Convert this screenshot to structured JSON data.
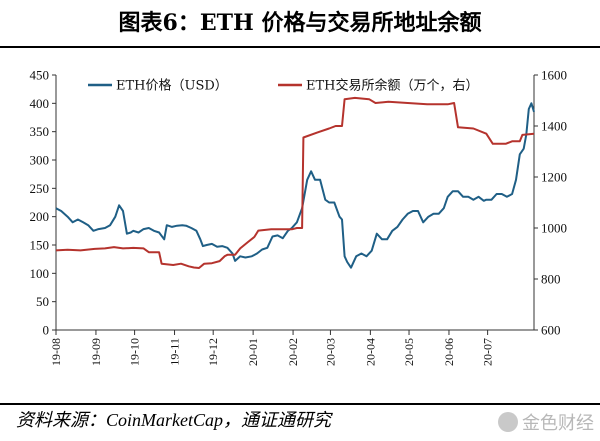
{
  "title": "图表6：ETH 价格与交易所地址余额",
  "source": "资料来源：CoinMarketCap，通证通研究",
  "watermark": "金色财经",
  "chart_data": {
    "type": "line",
    "legend": [
      "ETH价格（USD）",
      "ETH交易所余额（万个，右）"
    ],
    "legend_placement": "top",
    "grid": false,
    "x": {
      "start": "2019-08-01",
      "end": "2020-08-06",
      "tick_labels": [
        "19-08",
        "19-09",
        "19-10",
        "19-11",
        "19-12",
        "20-01",
        "20-02",
        "20-03",
        "20-04",
        "20-05",
        "20-06",
        "20-07"
      ]
    },
    "y_left": {
      "min": 0,
      "max": 450,
      "ticks": [
        0,
        50,
        100,
        150,
        200,
        250,
        300,
        350,
        400,
        450
      ]
    },
    "y_right": {
      "min": 600,
      "max": 1600,
      "ticks": [
        600,
        800,
        1000,
        1200,
        1400,
        1600
      ]
    },
    "series": [
      {
        "name": "ETH价格（USD）",
        "axis": "left",
        "color": "#1f5f86",
        "points": [
          [
            "2019-08-01",
            215
          ],
          [
            "2019-08-05",
            210
          ],
          [
            "2019-08-10",
            200
          ],
          [
            "2019-08-14",
            190
          ],
          [
            "2019-08-18",
            195
          ],
          [
            "2019-08-22",
            190
          ],
          [
            "2019-08-26",
            185
          ],
          [
            "2019-08-30",
            175
          ],
          [
            "2019-09-03",
            178
          ],
          [
            "2019-09-08",
            180
          ],
          [
            "2019-09-12",
            185
          ],
          [
            "2019-09-16",
            200
          ],
          [
            "2019-09-19",
            220
          ],
          [
            "2019-09-22",
            210
          ],
          [
            "2019-09-25",
            170
          ],
          [
            "2019-09-28",
            172
          ],
          [
            "2019-09-30",
            175
          ],
          [
            "2019-10-04",
            172
          ],
          [
            "2019-10-08",
            178
          ],
          [
            "2019-10-12",
            180
          ],
          [
            "2019-10-16",
            175
          ],
          [
            "2019-10-20",
            172
          ],
          [
            "2019-10-24",
            160
          ],
          [
            "2019-10-26",
            185
          ],
          [
            "2019-10-30",
            182
          ],
          [
            "2019-11-03",
            184
          ],
          [
            "2019-11-07",
            185
          ],
          [
            "2019-11-10",
            184
          ],
          [
            "2019-11-14",
            180
          ],
          [
            "2019-11-18",
            175
          ],
          [
            "2019-11-21",
            160
          ],
          [
            "2019-11-23",
            148
          ],
          [
            "2019-11-26",
            150
          ],
          [
            "2019-11-30",
            152
          ],
          [
            "2019-12-04",
            147
          ],
          [
            "2019-12-08",
            148
          ],
          [
            "2019-12-12",
            145
          ],
          [
            "2019-12-16",
            135
          ],
          [
            "2019-12-18",
            122
          ],
          [
            "2019-12-22",
            130
          ],
          [
            "2019-12-26",
            128
          ],
          [
            "2019-12-31",
            130
          ],
          [
            "2020-01-04",
            135
          ],
          [
            "2020-01-08",
            142
          ],
          [
            "2020-01-12",
            145
          ],
          [
            "2020-01-16",
            165
          ],
          [
            "2020-01-20",
            167
          ],
          [
            "2020-01-24",
            162
          ],
          [
            "2020-01-28",
            175
          ],
          [
            "2020-01-31",
            180
          ],
          [
            "2020-02-04",
            190
          ],
          [
            "2020-02-08",
            215
          ],
          [
            "2020-02-12",
            265
          ],
          [
            "2020-02-15",
            280
          ],
          [
            "2020-02-18",
            265
          ],
          [
            "2020-02-22",
            265
          ],
          [
            "2020-02-26",
            230
          ],
          [
            "2020-02-29",
            225
          ],
          [
            "2020-03-04",
            225
          ],
          [
            "2020-03-08",
            200
          ],
          [
            "2020-03-10",
            195
          ],
          [
            "2020-03-12",
            130
          ],
          [
            "2020-03-14",
            120
          ],
          [
            "2020-03-17",
            110
          ],
          [
            "2020-03-21",
            130
          ],
          [
            "2020-03-25",
            135
          ],
          [
            "2020-03-29",
            130
          ],
          [
            "2020-04-02",
            140
          ],
          [
            "2020-04-06",
            170
          ],
          [
            "2020-04-10",
            160
          ],
          [
            "2020-04-14",
            160
          ],
          [
            "2020-04-18",
            175
          ],
          [
            "2020-04-22",
            182
          ],
          [
            "2020-04-26",
            195
          ],
          [
            "2020-04-30",
            205
          ],
          [
            "2020-05-04",
            210
          ],
          [
            "2020-05-08",
            210
          ],
          [
            "2020-05-12",
            190
          ],
          [
            "2020-05-16",
            200
          ],
          [
            "2020-05-20",
            205
          ],
          [
            "2020-05-24",
            205
          ],
          [
            "2020-05-28",
            215
          ],
          [
            "2020-05-31",
            235
          ],
          [
            "2020-06-04",
            245
          ],
          [
            "2020-06-08",
            245
          ],
          [
            "2020-06-12",
            235
          ],
          [
            "2020-06-16",
            235
          ],
          [
            "2020-06-20",
            230
          ],
          [
            "2020-06-24",
            235
          ],
          [
            "2020-06-28",
            228
          ],
          [
            "2020-06-30",
            230
          ],
          [
            "2020-07-04",
            230
          ],
          [
            "2020-07-08",
            240
          ],
          [
            "2020-07-12",
            240
          ],
          [
            "2020-07-16",
            235
          ],
          [
            "2020-07-20",
            240
          ],
          [
            "2020-07-23",
            265
          ],
          [
            "2020-07-26",
            310
          ],
          [
            "2020-07-29",
            320
          ],
          [
            "2020-07-31",
            345
          ],
          [
            "2020-08-02",
            390
          ],
          [
            "2020-08-04",
            400
          ],
          [
            "2020-08-06",
            385
          ]
        ]
      },
      {
        "name": "ETH交易所余额（万个，右）",
        "axis": "right",
        "color": "#b5332d",
        "points": [
          [
            "2019-08-01",
            912
          ],
          [
            "2019-08-10",
            915
          ],
          [
            "2019-08-20",
            912
          ],
          [
            "2019-08-31",
            918
          ],
          [
            "2019-09-08",
            920
          ],
          [
            "2019-09-15",
            925
          ],
          [
            "2019-09-22",
            920
          ],
          [
            "2019-09-30",
            922
          ],
          [
            "2019-10-08",
            920
          ],
          [
            "2019-10-12",
            905
          ],
          [
            "2019-10-20",
            905
          ],
          [
            "2019-10-22",
            860
          ],
          [
            "2019-10-31",
            855
          ],
          [
            "2019-11-06",
            860
          ],
          [
            "2019-11-12",
            850
          ],
          [
            "2019-11-16",
            845
          ],
          [
            "2019-11-20",
            843
          ],
          [
            "2019-11-24",
            860
          ],
          [
            "2019-11-30",
            862
          ],
          [
            "2019-12-06",
            870
          ],
          [
            "2019-12-10",
            890
          ],
          [
            "2019-12-12",
            895
          ],
          [
            "2019-12-18",
            895
          ],
          [
            "2019-12-22",
            920
          ],
          [
            "2019-12-28",
            945
          ],
          [
            "2020-01-02",
            965
          ],
          [
            "2020-01-05",
            990
          ],
          [
            "2020-01-15",
            995
          ],
          [
            "2020-01-25",
            995
          ],
          [
            "2020-01-31",
            995
          ],
          [
            "2020-02-04",
            1000
          ],
          [
            "2020-02-08",
            1000
          ],
          [
            "2020-02-09",
            1355
          ],
          [
            "2020-02-20",
            1375
          ],
          [
            "2020-02-29",
            1390
          ],
          [
            "2020-03-05",
            1400
          ],
          [
            "2020-03-10",
            1400
          ],
          [
            "2020-03-12",
            1505
          ],
          [
            "2020-03-20",
            1510
          ],
          [
            "2020-03-31",
            1505
          ],
          [
            "2020-04-05",
            1490
          ],
          [
            "2020-04-15",
            1495
          ],
          [
            "2020-04-30",
            1490
          ],
          [
            "2020-05-15",
            1485
          ],
          [
            "2020-05-31",
            1485
          ],
          [
            "2020-06-05",
            1490
          ],
          [
            "2020-06-08",
            1395
          ],
          [
            "2020-06-20",
            1390
          ],
          [
            "2020-06-30",
            1370
          ],
          [
            "2020-07-05",
            1330
          ],
          [
            "2020-07-15",
            1330
          ],
          [
            "2020-07-20",
            1340
          ],
          [
            "2020-07-26",
            1340
          ],
          [
            "2020-07-28",
            1365
          ],
          [
            "2020-08-06",
            1370
          ]
        ]
      }
    ]
  }
}
